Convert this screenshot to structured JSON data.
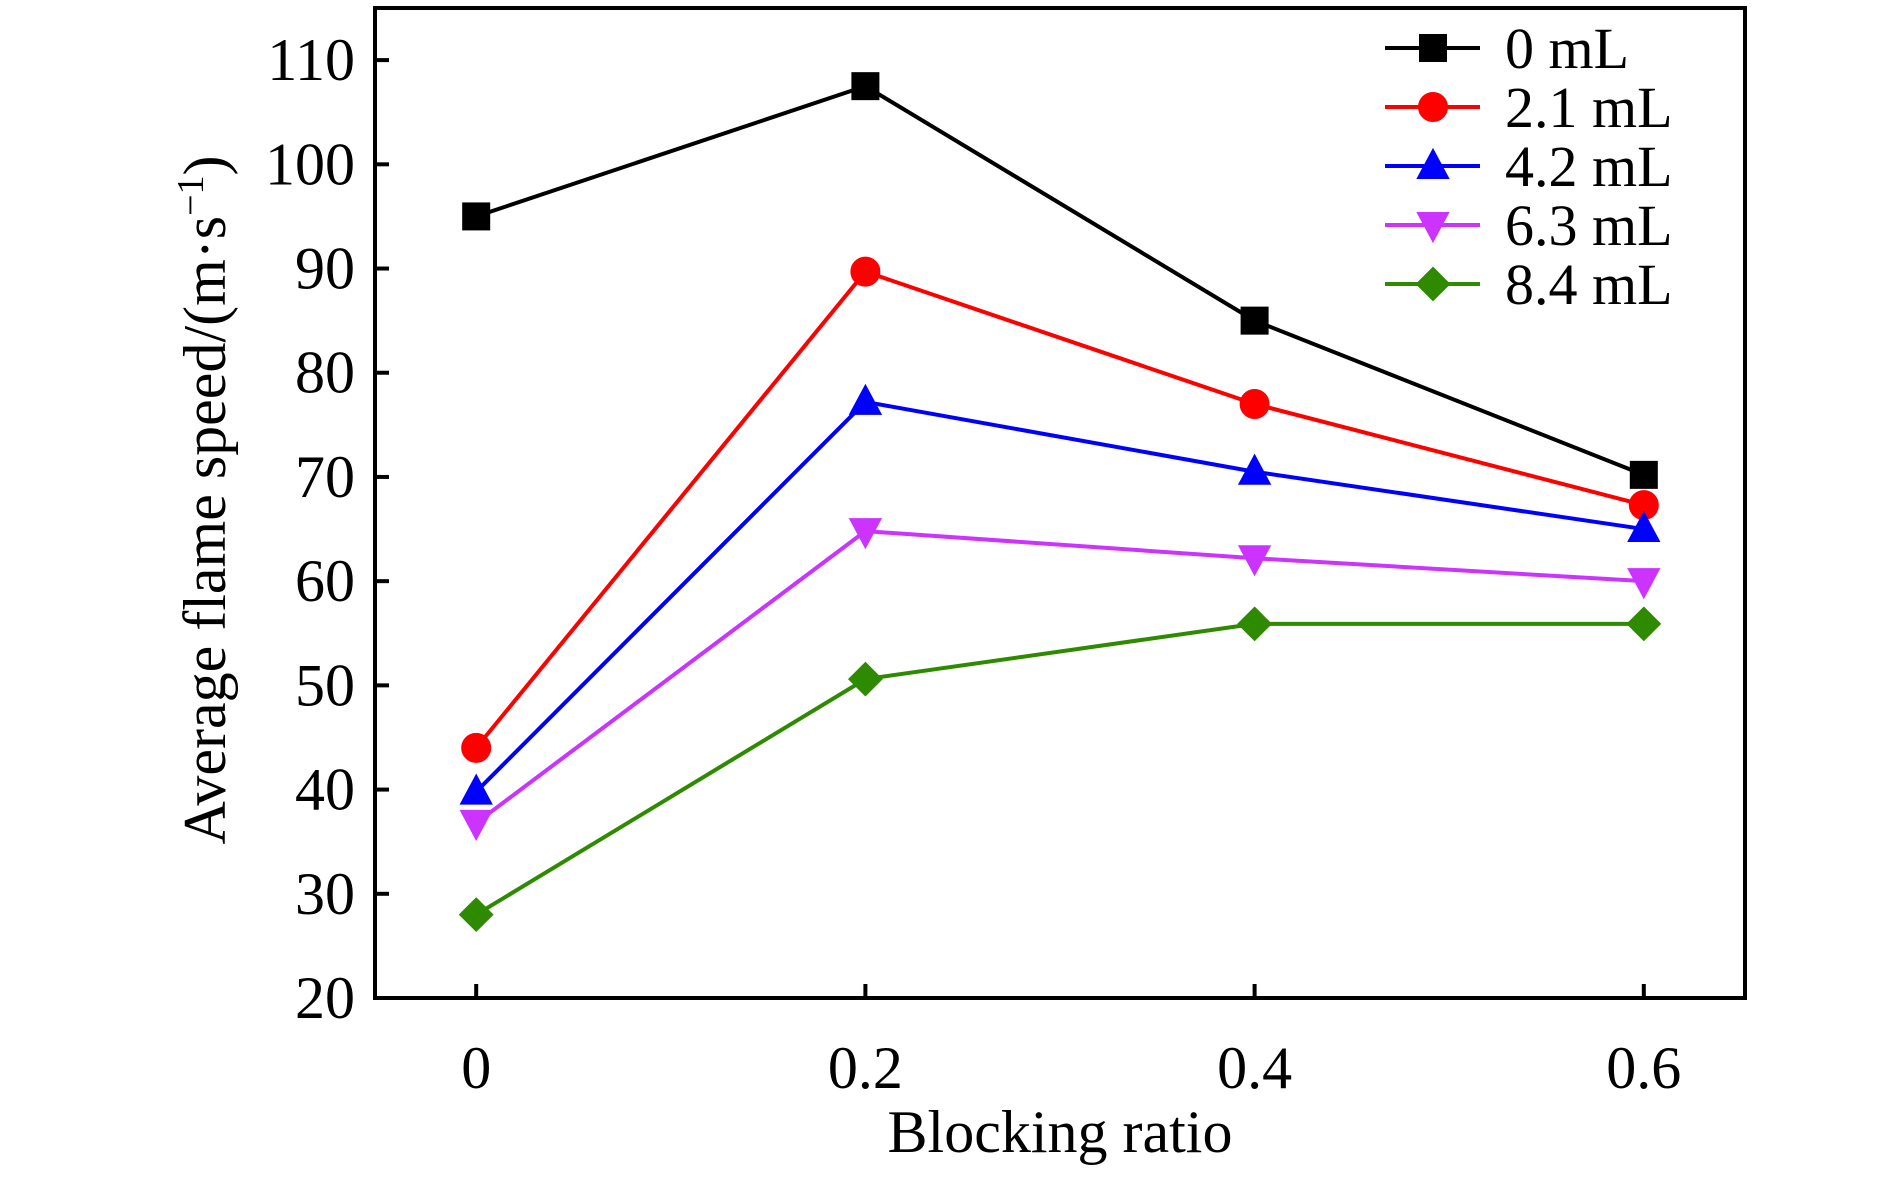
{
  "chart_data": {
    "type": "line",
    "title": "",
    "xlabel": "Blocking ratio",
    "ylabel_main": "Average flame speed/(m·s",
    "ylabel_sup": "−1",
    "ylabel_close": ")",
    "x": [
      0,
      0.2,
      0.4,
      0.6
    ],
    "x_tick_labels": [
      "0",
      "0.2",
      "0.4",
      "0.6"
    ],
    "xlim": [
      -0.052,
      0.652
    ],
    "ylim": [
      20,
      115
    ],
    "y_ticks": [
      20,
      30,
      40,
      50,
      60,
      70,
      80,
      90,
      100,
      110
    ],
    "y_tick_labels": [
      "20",
      "30",
      "40",
      "50",
      "60",
      "70",
      "80",
      "90",
      "100",
      "110"
    ],
    "grid": false,
    "legend_position": "top-right",
    "series": [
      {
        "name": "0 mL",
        "color": "#000000",
        "marker": "square",
        "values": [
          95,
          107.5,
          85,
          70.2
        ]
      },
      {
        "name": "2.1 mL",
        "color": "#ff0000",
        "marker": "circle",
        "values": [
          44,
          89.7,
          77,
          67.3
        ]
      },
      {
        "name": "4.2 mL",
        "color": "#0000ff",
        "marker": "triangle-up",
        "values": [
          39.8,
          77.2,
          70.5,
          65
        ]
      },
      {
        "name": "6.3 mL",
        "color": "#cc33ff",
        "marker": "triangle-down",
        "values": [
          36.8,
          64.8,
          62.2,
          60
        ]
      },
      {
        "name": "8.4 mL",
        "color": "#2e8b00",
        "marker": "diamond",
        "values": [
          28,
          50.6,
          55.9,
          55.9
        ]
      }
    ]
  }
}
